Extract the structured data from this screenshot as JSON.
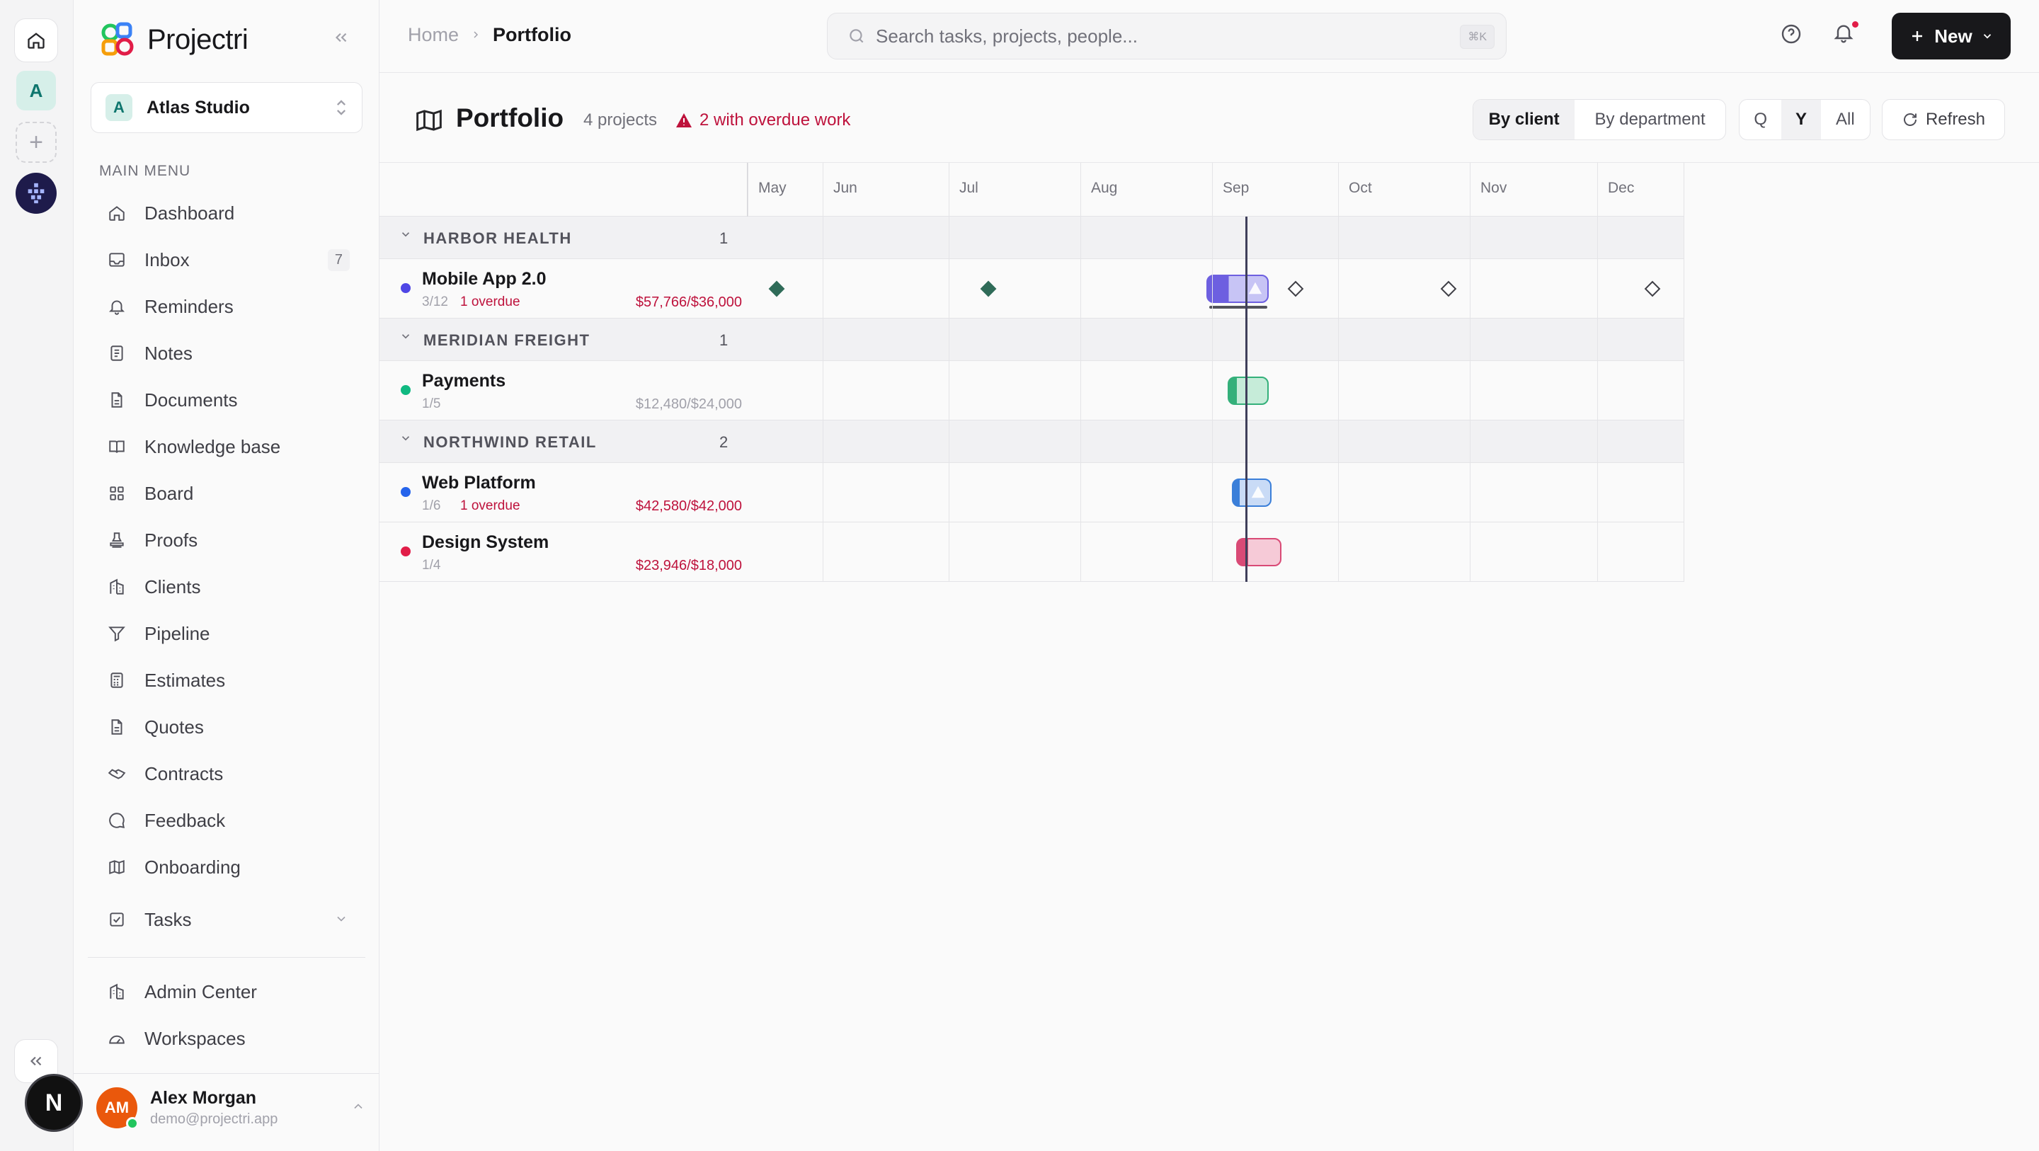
{
  "app": {
    "name": "Projectri"
  },
  "rail": {
    "workspace_initial": "A",
    "user_initial": "N"
  },
  "workspace": {
    "initial": "A",
    "name": "Atlas Studio"
  },
  "sidebar": {
    "menu_heading": "MAIN MENU",
    "items": [
      {
        "label": "Dashboard",
        "icon": "home-icon"
      },
      {
        "label": "Inbox",
        "icon": "inbox-icon",
        "badge": "7"
      },
      {
        "label": "Reminders",
        "icon": "bell-icon"
      },
      {
        "label": "Notes",
        "icon": "note-icon"
      },
      {
        "label": "Documents",
        "icon": "document-icon"
      },
      {
        "label": "Knowledge base",
        "icon": "book-icon"
      },
      {
        "label": "Board",
        "icon": "grid-icon"
      },
      {
        "label": "Proofs",
        "icon": "stamp-icon"
      },
      {
        "label": "Clients",
        "icon": "building-icon"
      },
      {
        "label": "Pipeline",
        "icon": "funnel-icon"
      },
      {
        "label": "Estimates",
        "icon": "calculator-icon"
      },
      {
        "label": "Quotes",
        "icon": "document-icon"
      },
      {
        "label": "Contracts",
        "icon": "handshake-icon"
      },
      {
        "label": "Feedback",
        "icon": "chat-icon"
      },
      {
        "label": "Onboarding",
        "icon": "map-icon"
      },
      {
        "label": "Tasks",
        "icon": "checkbox-icon"
      }
    ],
    "secondary": [
      {
        "label": "Admin Center",
        "icon": "building-icon"
      },
      {
        "label": "Workspaces",
        "icon": "gauge-icon"
      }
    ]
  },
  "user": {
    "initials": "AM",
    "name": "Alex Morgan",
    "email": "demo@projectri.app"
  },
  "topbar": {
    "breadcrumb": [
      "Home",
      "Portfolio"
    ],
    "search_placeholder": "Search tasks, projects, people...",
    "search_shortcut": "⌘K",
    "new_label": "New"
  },
  "page": {
    "title": "Portfolio",
    "count": "4 projects",
    "warning": "2 with overdue work",
    "group_by": [
      "By client",
      "By department"
    ],
    "group_by_active": "By client",
    "range": [
      "Q",
      "Y",
      "All"
    ],
    "range_active": "Y",
    "refresh_label": "Refresh"
  },
  "timeline": {
    "months": [
      "May",
      "Jun",
      "Jul",
      "Aug",
      "Sep",
      "Oct",
      "Nov",
      "Dec"
    ],
    "groups": [
      {
        "name": "HARBOR HEALTH",
        "count": "1",
        "projects": [
          {
            "name": "Mobile App 2.0",
            "progress": "3/12",
            "overdue": "1 overdue",
            "budget": "$57,766/$36,000",
            "over_budget": true,
            "color": "#4f46e5"
          }
        ]
      },
      {
        "name": "MERIDIAN FREIGHT",
        "count": "1",
        "projects": [
          {
            "name": "Payments",
            "progress": "1/5",
            "overdue": "",
            "budget": "$12,480/$24,000",
            "over_budget": false,
            "color": "#10b981"
          }
        ]
      },
      {
        "name": "NORTHWIND RETAIL",
        "count": "2",
        "projects": [
          {
            "name": "Web Platform",
            "progress": "1/6",
            "overdue": "1 overdue",
            "budget": "$42,580/$42,000",
            "over_budget": true,
            "color": "#2563eb"
          },
          {
            "name": "Design System",
            "progress": "1/4",
            "overdue": "",
            "budget": "$23,946/$18,000",
            "over_budget": true,
            "color": "#e11d48"
          }
        ]
      }
    ]
  },
  "colors": {
    "accent": "#18181b",
    "danger": "#be123c",
    "muted": "#71717a"
  }
}
